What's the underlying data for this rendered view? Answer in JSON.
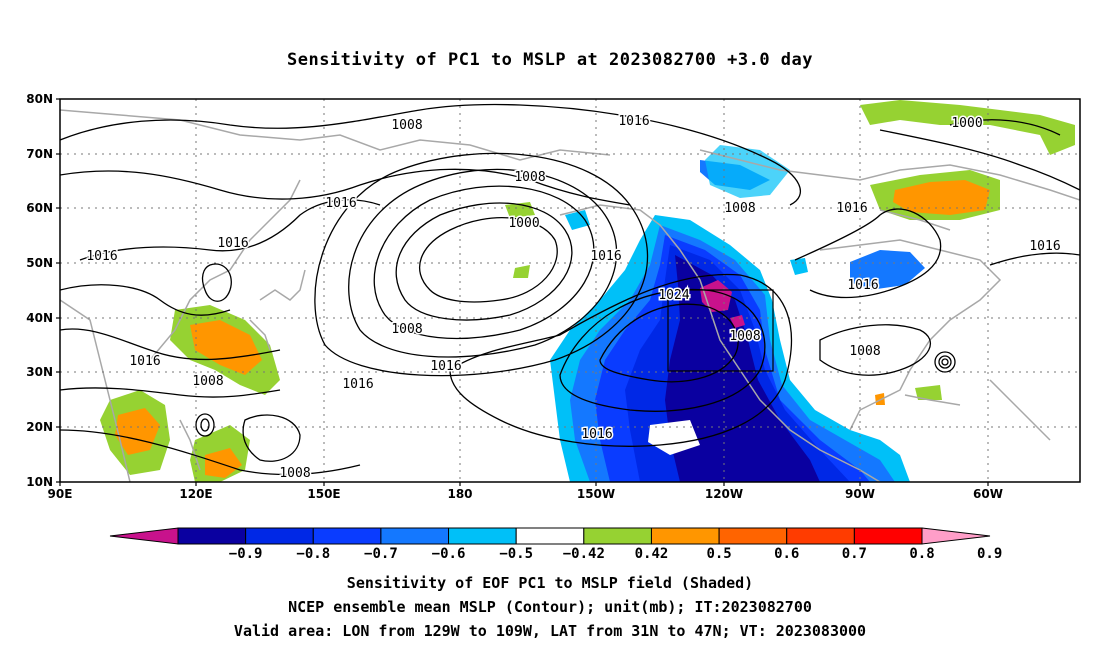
{
  "title": "Sensitivity of PC1 to MSLP at 2023082700 +3.0 day",
  "map": {
    "lat_labels": [
      "80N",
      "70N",
      "60N",
      "50N",
      "40N",
      "30N",
      "20N",
      "10N"
    ],
    "lon_labels": [
      "90E",
      "120E",
      "150E",
      "180",
      "150W",
      "120W",
      "90W",
      "60W"
    ],
    "lon_range": [
      "90E",
      "40W"
    ],
    "lat_range": [
      "10N",
      "80N"
    ],
    "grid": "dotted",
    "contour_labels": [
      {
        "id": "c1",
        "text": "1008"
      },
      {
        "id": "c2",
        "text": "1016"
      },
      {
        "id": "c3",
        "text": "1008"
      },
      {
        "id": "c4",
        "text": "1016"
      },
      {
        "id": "c5",
        "text": "1000"
      },
      {
        "id": "c6",
        "text": "1016"
      },
      {
        "id": "c7",
        "text": "1016"
      },
      {
        "id": "c8",
        "text": "1016"
      },
      {
        "id": "c9",
        "text": "1016"
      },
      {
        "id": "c10",
        "text": "1024"
      },
      {
        "id": "c11",
        "text": "1008"
      },
      {
        "id": "c12",
        "text": "1016"
      },
      {
        "id": "c13",
        "text": "1008"
      },
      {
        "id": "c14",
        "text": "1016"
      },
      {
        "id": "c15",
        "text": "1016"
      },
      {
        "id": "c16",
        "text": "1008"
      },
      {
        "id": "c17",
        "text": "1008"
      },
      {
        "id": "c18",
        "text": "1008"
      },
      {
        "id": "c19",
        "text": "1000"
      },
      {
        "id": "c20",
        "text": "1016"
      },
      {
        "id": "c21",
        "text": "1016"
      },
      {
        "id": "c22",
        "text": "1008"
      }
    ],
    "valid_box": {
      "lon": [
        "129W",
        "109W"
      ],
      "lat": [
        "31N",
        "47N"
      ]
    }
  },
  "colorbar": {
    "labels": [
      "-0.9",
      "-0.8",
      "-0.7",
      "-0.6",
      "-0.5",
      "-0.42",
      "0.42",
      "0.5",
      "0.6",
      "0.7",
      "0.8",
      "0.9"
    ],
    "colors": [
      "#c8128c",
      "#0a00a0",
      "#0028e6",
      "#0a3cff",
      "#1478ff",
      "#00c0f8",
      "#ffffff",
      "#96d232",
      "#ff9600",
      "#ff6400",
      "#ff3c00",
      "#ff0000",
      "#ff9ec8"
    ]
  },
  "captions": {
    "line1": "Sensitivity of EOF PC1 to MSLP field (Shaded)",
    "line2": "NCEP ensemble mean MSLP (Contour); unit(mb); IT:2023082700",
    "line3": "Valid area: LON from 129W to 109W, LAT from 31N to 47N; VT: 2023083000"
  }
}
